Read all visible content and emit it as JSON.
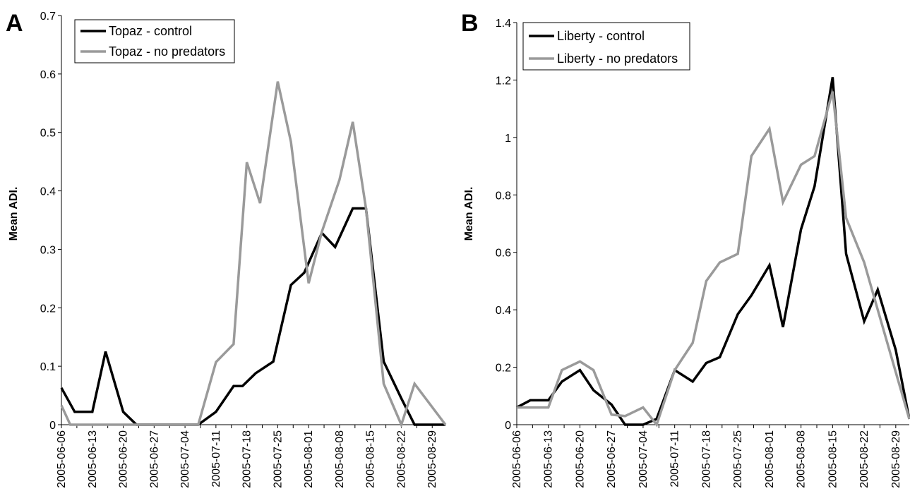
{
  "chart_data": [
    {
      "type": "line",
      "panel_label": "A",
      "title": "",
      "xlabel": "",
      "ylabel": "Mean ADI.",
      "ylim": [
        0,
        0.7
      ],
      "yticks": [
        "0",
        "0.1",
        "0.2",
        "0.3",
        "0.4",
        "0.5",
        "0.6",
        "0.7"
      ],
      "xtick_labels": [
        "2005-06-06",
        "2005-06-13",
        "2005-06-20",
        "2005-06-27",
        "2005-07-04",
        "2005-07-11",
        "2005-07-18",
        "2005-07-25",
        "2005-08-01",
        "2005-08-08",
        "2005-08-15",
        "2005-08-22",
        "2005-08-29"
      ],
      "grid": false,
      "legend": "top-left",
      "series": [
        {
          "name": "Topaz - control",
          "color": "#000000",
          "points": [
            [
              "2005-06-06",
              0.063
            ],
            [
              "2005-06-09",
              0.022
            ],
            [
              "2005-06-13",
              0.022
            ],
            [
              "2005-06-16",
              0.125
            ],
            [
              "2005-06-20",
              0.022
            ],
            [
              "2005-06-23",
              0.0
            ],
            [
              "2005-06-27",
              0.0
            ],
            [
              "2005-06-30",
              0.0
            ],
            [
              "2005-07-04",
              0.0
            ],
            [
              "2005-07-07",
              0.0
            ],
            [
              "2005-07-11",
              0.022
            ],
            [
              "2005-07-15",
              0.066
            ],
            [
              "2005-07-17",
              0.066
            ],
            [
              "2005-07-20",
              0.088
            ],
            [
              "2005-07-24",
              0.108
            ],
            [
              "2005-07-28",
              0.239
            ],
            [
              "2005-07-31",
              0.26
            ],
            [
              "2005-08-04",
              0.328
            ],
            [
              "2005-08-07",
              0.304
            ],
            [
              "2005-08-11",
              0.37
            ],
            [
              "2005-08-14",
              0.37
            ],
            [
              "2005-08-18",
              0.108
            ],
            [
              "2005-08-22",
              0.045
            ],
            [
              "2005-08-25",
              0.0
            ],
            [
              "2005-08-29",
              0.0
            ],
            [
              "2005-09-01",
              0.0
            ]
          ]
        },
        {
          "name": "Topaz - no predators",
          "color": "#9a9a9a",
          "points": [
            [
              "2005-06-06",
              0.033
            ],
            [
              "2005-06-08",
              0.0
            ],
            [
              "2005-06-13",
              0.0
            ],
            [
              "2005-06-20",
              0.0
            ],
            [
              "2005-06-27",
              0.0
            ],
            [
              "2005-07-04",
              0.0
            ],
            [
              "2005-07-07",
              0.0
            ],
            [
              "2005-07-11",
              0.107
            ],
            [
              "2005-07-15",
              0.138
            ],
            [
              "2005-07-18",
              0.449
            ],
            [
              "2005-07-21",
              0.379
            ],
            [
              "2005-07-25",
              0.587
            ],
            [
              "2005-07-28",
              0.484
            ],
            [
              "2005-08-01",
              0.242
            ],
            [
              "2005-08-04",
              0.33
            ],
            [
              "2005-08-08",
              0.419
            ],
            [
              "2005-08-11",
              0.518
            ],
            [
              "2005-08-14",
              0.37
            ],
            [
              "2005-08-18",
              0.07
            ],
            [
              "2005-08-22",
              0.0
            ],
            [
              "2005-08-25",
              0.07
            ],
            [
              "2005-09-01",
              0.0
            ]
          ]
        }
      ]
    },
    {
      "type": "line",
      "panel_label": "B",
      "title": "",
      "xlabel": "",
      "ylabel": "Mean ADI.",
      "ylim": [
        0,
        1.4
      ],
      "yticks": [
        "0",
        "0.2",
        "0.4",
        "0.6",
        "0.8",
        "1",
        "1.2",
        "1.4"
      ],
      "xtick_labels": [
        "2005-06-06",
        "2005-06-13",
        "2005-06-20",
        "2005-06-27",
        "2005-07-04",
        "2005-07-11",
        "2005-07-18",
        "2005-07-25",
        "2005-08-01",
        "2005-08-08",
        "2005-08-15",
        "2005-08-22",
        "2005-08-29"
      ],
      "grid": false,
      "legend": "top-left",
      "series": [
        {
          "name": "Liberty - control",
          "color": "#000000",
          "points": [
            [
              "2005-06-06",
              0.06
            ],
            [
              "2005-06-09",
              0.085
            ],
            [
              "2005-06-13",
              0.085
            ],
            [
              "2005-06-16",
              0.15
            ],
            [
              "2005-06-20",
              0.19
            ],
            [
              "2005-06-23",
              0.12
            ],
            [
              "2005-06-27",
              0.07
            ],
            [
              "2005-06-30",
              0.0
            ],
            [
              "2005-07-04",
              0.0
            ],
            [
              "2005-07-07",
              0.02
            ],
            [
              "2005-07-11",
              0.19
            ],
            [
              "2005-07-15",
              0.15
            ],
            [
              "2005-07-18",
              0.215
            ],
            [
              "2005-07-21",
              0.235
            ],
            [
              "2005-07-25",
              0.385
            ],
            [
              "2005-07-28",
              0.45
            ],
            [
              "2005-08-01",
              0.555
            ],
            [
              "2005-08-04",
              0.34
            ],
            [
              "2005-08-08",
              0.68
            ],
            [
              "2005-08-11",
              0.83
            ],
            [
              "2005-08-15",
              1.21
            ],
            [
              "2005-08-18",
              0.595
            ],
            [
              "2005-08-22",
              0.36
            ],
            [
              "2005-08-25",
              0.47
            ],
            [
              "2005-08-29",
              0.26
            ],
            [
              "2005-09-01",
              0.02
            ]
          ]
        },
        {
          "name": "Liberty - no predators",
          "color": "#9a9a9a",
          "points": [
            [
              "2005-06-06",
              0.06
            ],
            [
              "2005-06-09",
              0.06
            ],
            [
              "2005-06-13",
              0.06
            ],
            [
              "2005-06-16",
              0.19
            ],
            [
              "2005-06-20",
              0.22
            ],
            [
              "2005-06-23",
              0.19
            ],
            [
              "2005-06-27",
              0.035
            ],
            [
              "2005-06-30",
              0.03
            ],
            [
              "2005-07-04",
              0.06
            ],
            [
              "2005-07-07",
              0.0
            ],
            [
              "2005-07-11",
              0.19
            ],
            [
              "2005-07-15",
              0.285
            ],
            [
              "2005-07-18",
              0.5
            ],
            [
              "2005-07-21",
              0.565
            ],
            [
              "2005-07-25",
              0.595
            ],
            [
              "2005-07-28",
              0.935
            ],
            [
              "2005-08-01",
              1.03
            ],
            [
              "2005-08-04",
              0.775
            ],
            [
              "2005-08-08",
              0.905
            ],
            [
              "2005-08-11",
              0.935
            ],
            [
              "2005-08-15",
              1.16
            ],
            [
              "2005-08-18",
              0.72
            ],
            [
              "2005-08-22",
              0.565
            ],
            [
              "2005-08-25",
              0.4
            ],
            [
              "2005-09-01",
              0.02
            ]
          ]
        }
      ]
    }
  ]
}
